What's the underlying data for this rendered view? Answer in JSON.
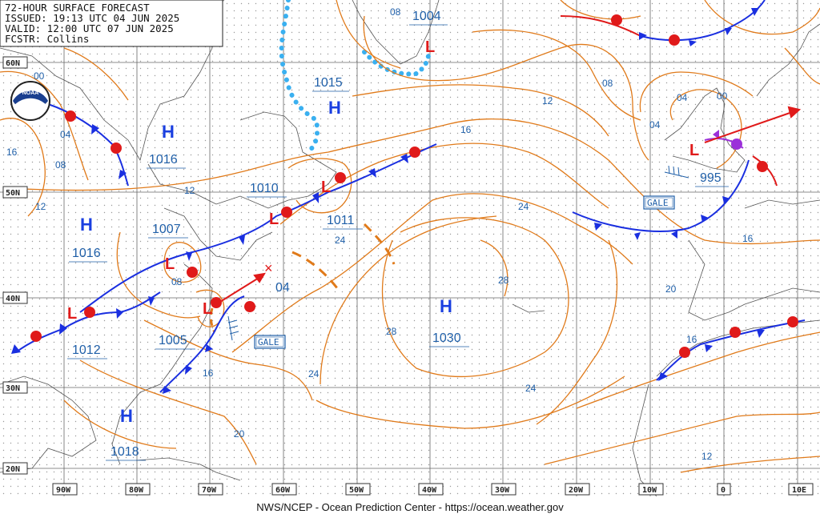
{
  "header": {
    "title": "72-HOUR SURFACE FORECAST",
    "issued": "ISSUED: 19:13 UTC 04 JUN 2025",
    "valid": "VALID:  12:00 UTC 07 JUN 2025",
    "forecaster": "FCSTR:  Collins"
  },
  "footer": "NWS/NCEP - Ocean Prediction Center - https://ocean.weather.gov",
  "logo": {
    "text": "NOAA",
    "icon": "noaa-logo"
  },
  "lat_labels": [
    "60N",
    "50N",
    "40N",
    "30N",
    "20N"
  ],
  "lon_labels": [
    "90W",
    "80W",
    "70W",
    "60W",
    "50W",
    "40W",
    "30W",
    "20W",
    "10W",
    "0",
    "10E"
  ],
  "highs": [
    {
      "symbol": "H",
      "pressure": "1015"
    },
    {
      "symbol": "H",
      "pressure": "1016"
    },
    {
      "symbol": "H",
      "pressure": "1016"
    },
    {
      "symbol": "H",
      "pressure": "1030"
    },
    {
      "symbol": "H",
      "pressure": "1018"
    }
  ],
  "lows": [
    {
      "pressure": "1004"
    },
    {
      "pressure": "1010"
    },
    {
      "pressure": "1011"
    },
    {
      "pressure": "1007"
    },
    {
      "pressure": "1005"
    },
    {
      "pressure": "1012"
    },
    {
      "pressure": "995"
    },
    {
      "pressure": "04"
    }
  ],
  "warnings": [
    "GALE",
    "GALE"
  ],
  "isobar_labels": [
    "00",
    "04",
    "08",
    "12",
    "08",
    "12",
    "16",
    "24",
    "28",
    "28",
    "24",
    "24",
    "20",
    "16",
    "20",
    "16",
    "12",
    "08",
    "04",
    "00",
    "08",
    "16",
    "12",
    "04",
    "16",
    "24"
  ],
  "colors": {
    "isobar": "#e07a1a",
    "cold_front": "#1a2fe0",
    "warm_front": "#e01a1a",
    "occluded_front": "#9b30d9",
    "ice_edge": "#3ab0f0",
    "low_symbol": "#e01a1a",
    "high_symbol": "#1a3fe0",
    "label": "#1f5fa8"
  }
}
